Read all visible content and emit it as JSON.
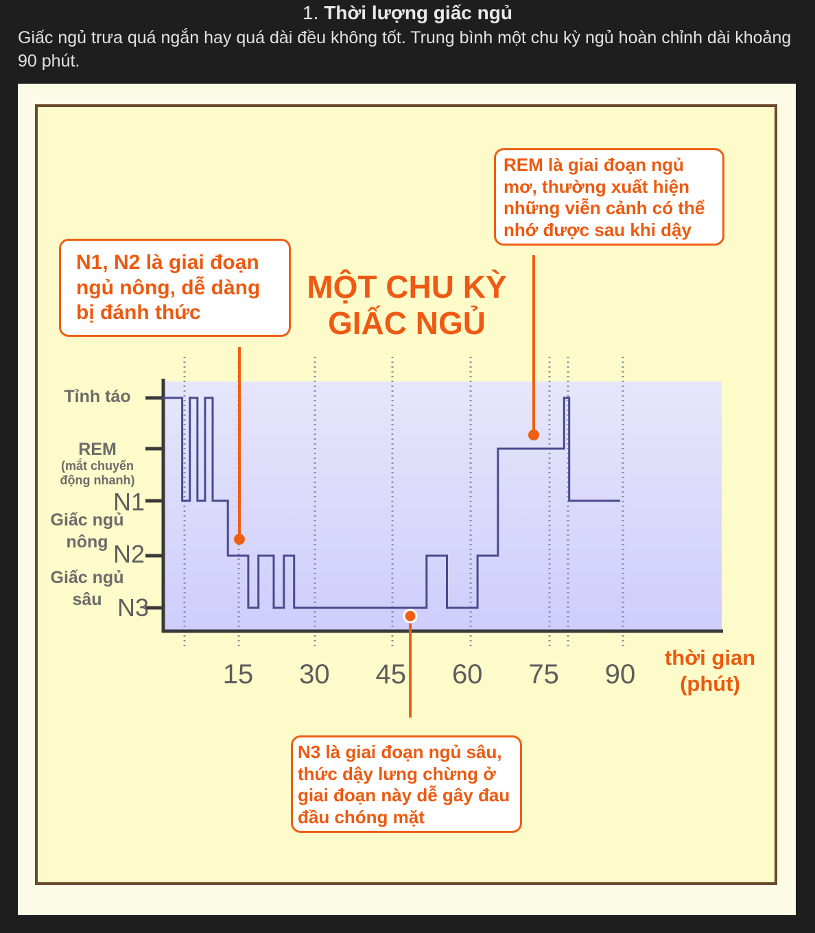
{
  "heading": {
    "number": "1.",
    "title": "Thời lượng giấc ngủ"
  },
  "description": "Giấc ngủ trưa quá ngắn hay quá dài đều không tốt. Trung bình một chu kỳ ngủ hoàn chỉnh dài khoảng 90 phút.",
  "infographic": {
    "title_line1": "MỘT CHU KỲ",
    "title_line2": "GIẤC NGỦ",
    "callouts": {
      "rem": "REM là giai đoạn ngủ mơ, thường xuất hiện những viễn cảnh có thể nhớ được sau khi dậy",
      "n1n2": "N1, N2 là giai đoạn ngủ nông, dễ dàng bị đánh thức",
      "n3": "N3 là giai đoạn ngủ sâu, thức dậy lưng chừng ở giai đoạn này dễ gây đau đầu chóng mặt"
    },
    "colors": {
      "accent": "#ee5f14",
      "line": "#4a4a8e",
      "frame": "#6b4a2a",
      "band": "#d6d6ff"
    }
  },
  "chart_data": {
    "type": "line",
    "step": true,
    "xlabel_line1": "thời gian",
    "xlabel_line2": "(phút)",
    "x_ticks": [
      "15",
      "30",
      "45",
      "60",
      "75",
      "90"
    ],
    "y_levels": {
      "awake": "Tỉnh táo",
      "rem": "REM",
      "rem_note_line1": "(mắt chuyển",
      "rem_note_line2": "động nhanh)",
      "n1": "N1",
      "n2": "N2",
      "n3": "N3",
      "light_line1": "Giấc ngủ",
      "light_line2": "nông",
      "deep_line1": "Giấc ngủ",
      "deep_line2": "sâu"
    },
    "levels_order": [
      "Tỉnh táo",
      "REM",
      "N1",
      "N2",
      "N3"
    ],
    "xlim": [
      0,
      90
    ],
    "series": [
      {
        "x": [
          0,
          4,
          4,
          5.5,
          5.5,
          7,
          7,
          8.5,
          8.5,
          10,
          10,
          13,
          13,
          17,
          17,
          19,
          19,
          22,
          22,
          24,
          24,
          26,
          26,
          52,
          52,
          56,
          56,
          62,
          62,
          66,
          66,
          79,
          79,
          80,
          80,
          90
        ],
        "y": [
          "Tỉnh táo",
          "Tỉnh táo",
          "N1",
          "N1",
          "Tỉnh táo",
          "Tỉnh táo",
          "N1",
          "N1",
          "Tỉnh táo",
          "Tỉnh táo",
          "N1",
          "N1",
          "N2",
          "N2",
          "N3",
          "N3",
          "N2",
          "N2",
          "N3",
          "N3",
          "N2",
          "N2",
          "N3",
          "N3",
          "N2",
          "N2",
          "N3",
          "N3",
          "N2",
          "N2",
          "REM",
          "REM",
          "Tỉnh táo",
          "Tỉnh táo",
          "N1",
          "N1"
        ]
      }
    ],
    "grid": true
  }
}
